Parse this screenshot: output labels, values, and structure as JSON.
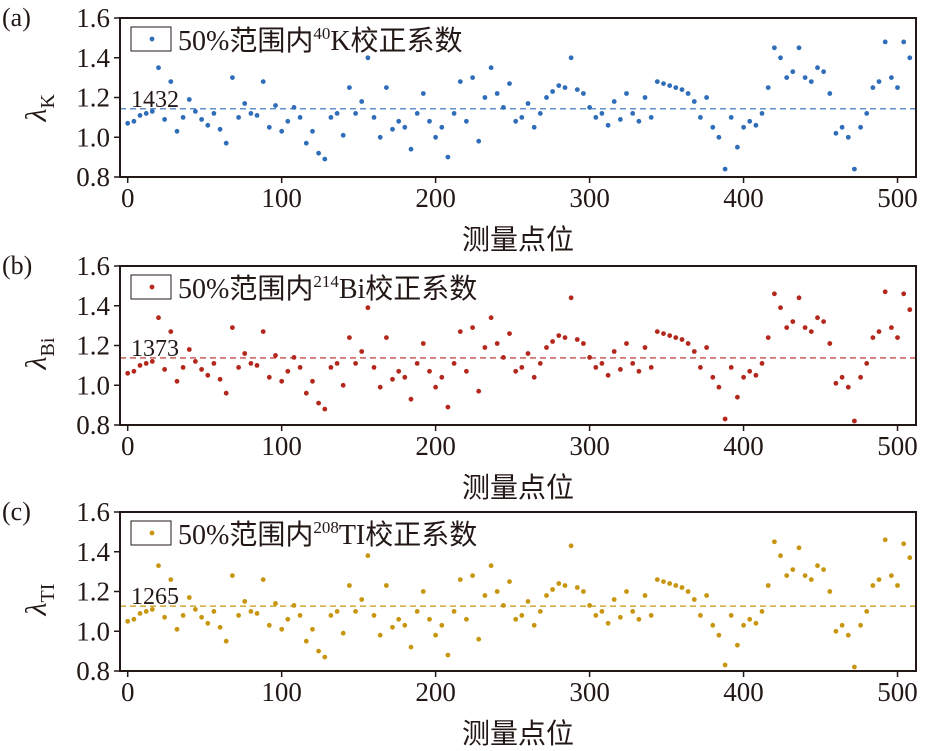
{
  "chart_data": [
    {
      "type": "scatter",
      "panel_label": "(a)",
      "ylabel_main": "λ",
      "ylabel_sub": "K",
      "xlabel": "测量点位",
      "legend": {
        "prefix": "50%范围内",
        "sup": "40",
        "suffix": "K校正系数",
        "placement": "top-left"
      },
      "color": "#2f6db8",
      "reference_line": {
        "value": 1.1432,
        "label": "1432"
      },
      "xlim": [
        -5,
        512
      ],
      "ylim": [
        0.8,
        1.6
      ],
      "xticks": [
        "0",
        "100",
        "200",
        "300",
        "400",
        "500"
      ],
      "yticks": [
        "0.8",
        "1.0",
        "1.2",
        "1.4",
        "1.6"
      ],
      "values": [
        1.07,
        1.08,
        1.11,
        1.12,
        1.13,
        1.35,
        1.09,
        1.28,
        1.03,
        1.1,
        1.19,
        1.13,
        1.09,
        1.06,
        1.12,
        1.04,
        0.97,
        1.3,
        1.1,
        1.17,
        1.12,
        1.11,
        1.28,
        1.05,
        1.16,
        1.03,
        1.08,
        1.15,
        1.1,
        0.97,
        1.03,
        0.92,
        0.89,
        1.1,
        1.12,
        1.01,
        1.25,
        1.12,
        1.18,
        1.4,
        1.1,
        1.0,
        1.25,
        1.04,
        1.08,
        1.05,
        0.94,
        1.12,
        1.22,
        1.08,
        1.0,
        1.05,
        0.9,
        1.12,
        1.28,
        1.08,
        1.3,
        0.98,
        1.2,
        1.35,
        1.22,
        1.15,
        1.27,
        1.08,
        1.1,
        1.17,
        1.05,
        1.12,
        1.2,
        1.23,
        1.26,
        1.25,
        1.4,
        1.24,
        1.22,
        1.15,
        1.1,
        1.12,
        1.06,
        1.18,
        1.09,
        1.22,
        1.12,
        1.08,
        1.2,
        1.1,
        1.28,
        1.27,
        1.26,
        1.25,
        1.24,
        1.22,
        1.18,
        1.1,
        1.2,
        1.05,
        1.0,
        0.84,
        1.1,
        0.95,
        1.05,
        1.08,
        1.06,
        1.12,
        1.25,
        1.45,
        1.4,
        1.3,
        1.33,
        1.45,
        1.3,
        1.28,
        1.35,
        1.33,
        1.22,
        1.02,
        1.05,
        1.0,
        0.84,
        1.05,
        1.12,
        1.25,
        1.28,
        1.48,
        1.3,
        1.25,
        1.48,
        1.4
      ]
    },
    {
      "type": "scatter",
      "panel_label": "(b)",
      "ylabel_main": "λ",
      "ylabel_sub": "Bi",
      "xlabel": "测量点位",
      "legend": {
        "prefix": "50%范围内",
        "sup": "214",
        "suffix": "Bi校正系数",
        "placement": "top-left"
      },
      "color": "#b3271c",
      "reference_line": {
        "value": 1.1373,
        "label": "1373"
      },
      "xlim": [
        -5,
        512
      ],
      "ylim": [
        0.8,
        1.6
      ],
      "xticks": [
        "0",
        "100",
        "200",
        "300",
        "400",
        "500"
      ],
      "yticks": [
        "0.8",
        "1.0",
        "1.2",
        "1.4",
        "1.6"
      ],
      "values": [
        1.06,
        1.07,
        1.1,
        1.11,
        1.12,
        1.34,
        1.08,
        1.27,
        1.02,
        1.09,
        1.18,
        1.12,
        1.08,
        1.05,
        1.11,
        1.03,
        0.96,
        1.29,
        1.09,
        1.16,
        1.11,
        1.1,
        1.27,
        1.04,
        1.15,
        1.02,
        1.07,
        1.14,
        1.09,
        0.96,
        1.02,
        0.91,
        0.88,
        1.09,
        1.11,
        1.0,
        1.24,
        1.11,
        1.17,
        1.39,
        1.09,
        0.99,
        1.24,
        1.03,
        1.07,
        1.04,
        0.93,
        1.11,
        1.21,
        1.07,
        0.99,
        1.04,
        0.89,
        1.11,
        1.27,
        1.07,
        1.29,
        0.97,
        1.19,
        1.34,
        1.21,
        1.14,
        1.26,
        1.07,
        1.09,
        1.16,
        1.04,
        1.11,
        1.19,
        1.22,
        1.25,
        1.24,
        1.44,
        1.23,
        1.21,
        1.14,
        1.09,
        1.11,
        1.05,
        1.17,
        1.08,
        1.21,
        1.11,
        1.07,
        1.19,
        1.09,
        1.27,
        1.26,
        1.25,
        1.24,
        1.23,
        1.21,
        1.17,
        1.09,
        1.19,
        1.04,
        0.99,
        0.83,
        1.09,
        0.94,
        1.04,
        1.07,
        1.05,
        1.11,
        1.24,
        1.46,
        1.39,
        1.29,
        1.32,
        1.44,
        1.29,
        1.27,
        1.34,
        1.32,
        1.21,
        1.01,
        1.04,
        0.99,
        0.82,
        1.04,
        1.11,
        1.24,
        1.27,
        1.47,
        1.29,
        1.24,
        1.46,
        1.38
      ]
    },
    {
      "type": "scatter",
      "panel_label": "(c)",
      "ylabel_main": "λ",
      "ylabel_sub": "TI",
      "xlabel": "测量点位",
      "legend": {
        "prefix": "50%范围内",
        "sup": "208",
        "suffix": "TI校正系数",
        "placement": "top-left"
      },
      "color": "#c8960e",
      "reference_line": {
        "value": 1.1265,
        "label": "1265"
      },
      "xlim": [
        -5,
        512
      ],
      "ylim": [
        0.8,
        1.6
      ],
      "xticks": [
        "0",
        "100",
        "200",
        "300",
        "400",
        "500"
      ],
      "yticks": [
        "0.8",
        "1.0",
        "1.2",
        "1.4",
        "1.6"
      ],
      "values": [
        1.05,
        1.06,
        1.09,
        1.1,
        1.11,
        1.33,
        1.07,
        1.26,
        1.01,
        1.08,
        1.17,
        1.11,
        1.07,
        1.04,
        1.1,
        1.02,
        0.95,
        1.28,
        1.08,
        1.15,
        1.1,
        1.09,
        1.26,
        1.03,
        1.14,
        1.01,
        1.06,
        1.13,
        1.08,
        0.95,
        1.01,
        0.9,
        0.87,
        1.08,
        1.1,
        0.99,
        1.23,
        1.1,
        1.16,
        1.38,
        1.08,
        0.98,
        1.23,
        1.02,
        1.06,
        1.03,
        0.92,
        1.1,
        1.2,
        1.06,
        0.98,
        1.03,
        0.88,
        1.1,
        1.26,
        1.06,
        1.28,
        0.96,
        1.18,
        1.33,
        1.2,
        1.13,
        1.25,
        1.06,
        1.08,
        1.15,
        1.03,
        1.1,
        1.18,
        1.21,
        1.24,
        1.23,
        1.43,
        1.22,
        1.2,
        1.13,
        1.08,
        1.1,
        1.04,
        1.16,
        1.07,
        1.2,
        1.1,
        1.06,
        1.18,
        1.08,
        1.26,
        1.25,
        1.24,
        1.23,
        1.22,
        1.2,
        1.16,
        1.08,
        1.18,
        1.03,
        0.98,
        0.83,
        1.08,
        0.93,
        1.03,
        1.06,
        1.04,
        1.1,
        1.23,
        1.45,
        1.38,
        1.28,
        1.31,
        1.42,
        1.28,
        1.26,
        1.33,
        1.31,
        1.2,
        1.0,
        1.03,
        0.98,
        0.82,
        1.03,
        1.1,
        1.23,
        1.26,
        1.46,
        1.28,
        1.23,
        1.44,
        1.37
      ]
    }
  ]
}
